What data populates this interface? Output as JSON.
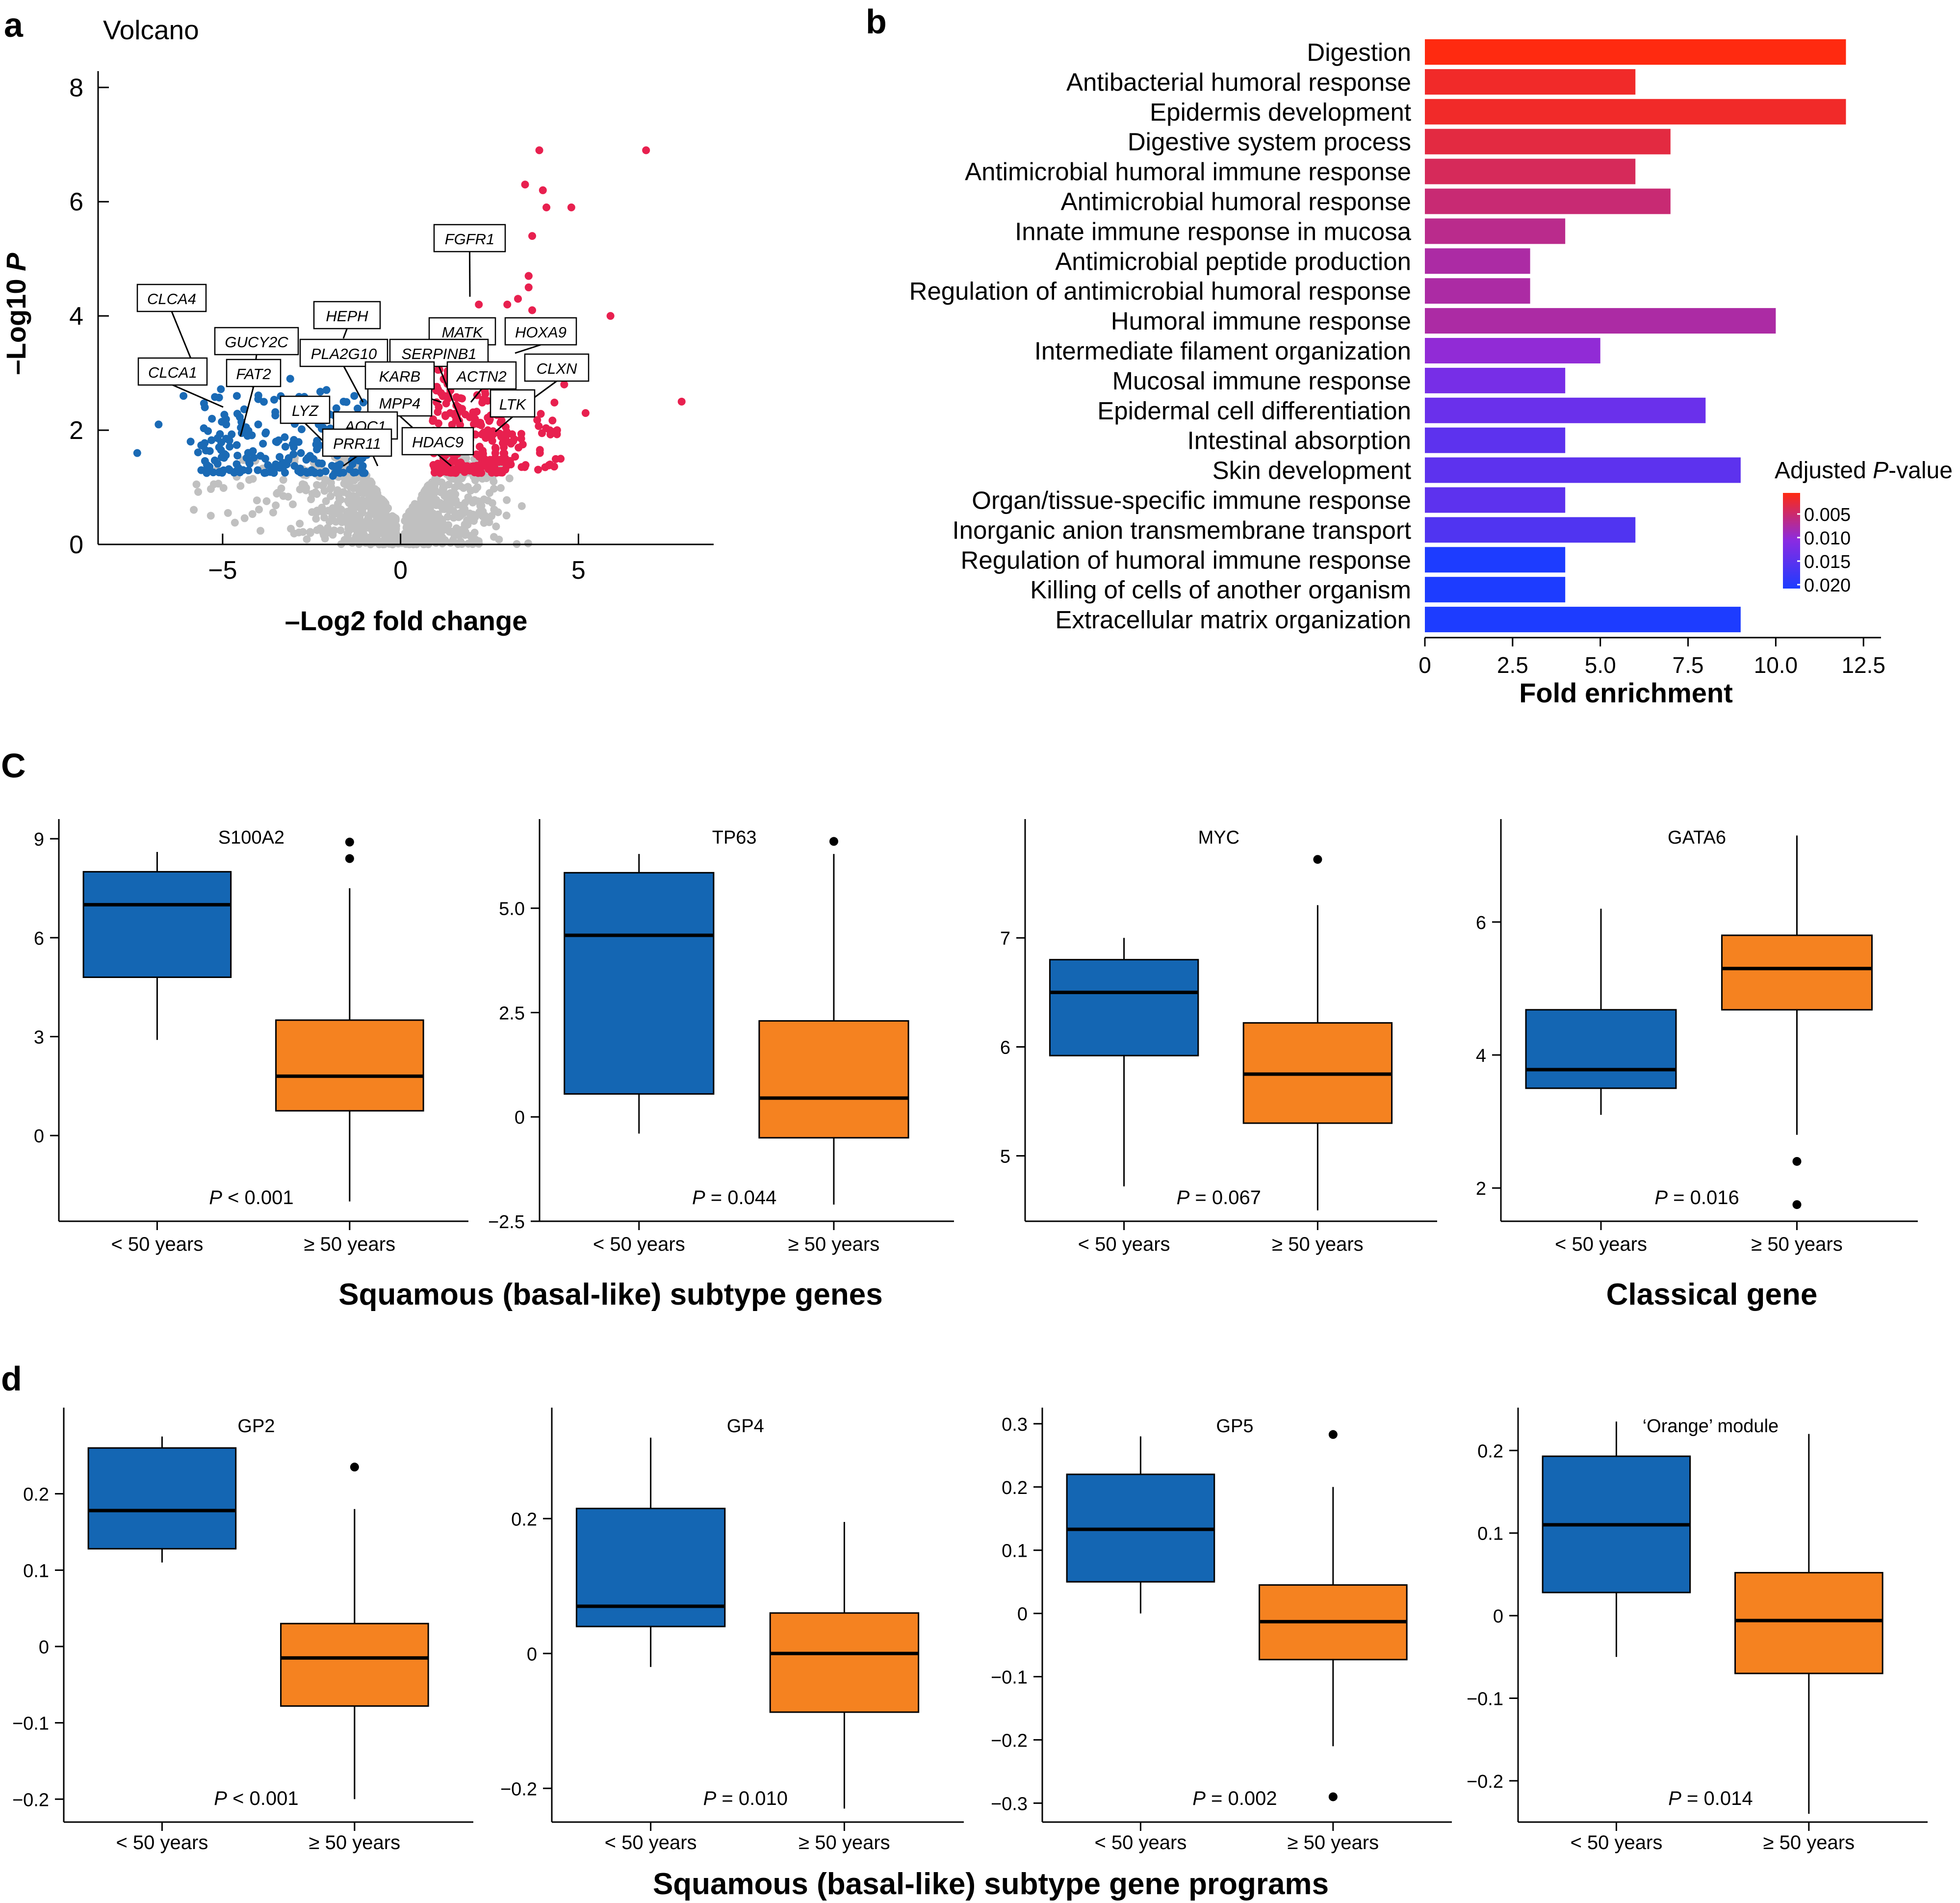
{
  "colors": {
    "down": "#1a6ab5",
    "up": "#e8204f",
    "ns": "#c0c0c0",
    "group1": "#1466b3",
    "group2": "#f58220",
    "grad_low": "#1d3cff",
    "grad_mid": "#8a2be2",
    "grad_high": "#ff2a10"
  },
  "chart_data": [
    {
      "panel": "a",
      "type": "scatter",
      "title": "Volcano",
      "xlabel": "–Log2 fold change",
      "ylabel_main": "–Log10 ",
      "ylabel_italic": "P",
      "xlim": [
        -8.5,
        8.8
      ],
      "ylim": [
        0,
        8.2
      ],
      "xticks": [
        -5,
        0,
        5
      ],
      "yticks": [
        0,
        2,
        4,
        6,
        8
      ],
      "highlight_points": {
        "up": [
          [
            6.9,
            6.9
          ],
          [
            3.9,
            6.9
          ],
          [
            3.5,
            6.3
          ],
          [
            4.0,
            6.2
          ],
          [
            4.1,
            5.9
          ],
          [
            4.8,
            5.9
          ],
          [
            3.7,
            5.4
          ],
          [
            3.6,
            4.7
          ],
          [
            3.6,
            4.7
          ],
          [
            3.6,
            4.5
          ],
          [
            3.5,
            3.7
          ],
          [
            5.9,
            4.0
          ],
          [
            7.9,
            2.5
          ],
          [
            2.2,
            4.2
          ],
          [
            3.0,
            4.2
          ],
          [
            3.3,
            4.3
          ],
          [
            3.7,
            4.1
          ],
          [
            2.6,
            3.1
          ],
          [
            4.6,
            2.8
          ],
          [
            5.2,
            2.3
          ],
          [
            4.4,
            2.0
          ],
          [
            4.5,
            1.5
          ],
          [
            3.0,
            1.8
          ],
          [
            3.1,
            1.4
          ],
          [
            4.2,
            1.4
          ]
        ],
        "down": [
          [
            -7.4,
            1.6
          ],
          [
            -6.8,
            2.1
          ],
          [
            -6.1,
            2.6
          ],
          [
            -5.9,
            1.8
          ],
          [
            -5.5,
            2.4
          ],
          [
            -5.3,
            2.2
          ],
          [
            -5.1,
            1.7
          ],
          [
            -4.9,
            2.1
          ],
          [
            -4.8,
            1.3
          ],
          [
            -4.6,
            2.6
          ],
          [
            -4.3,
            1.9
          ],
          [
            -4.0,
            2.1
          ],
          [
            -3.8,
            1.5
          ],
          [
            -3.5,
            1.8
          ],
          [
            -3.2,
            1.4
          ],
          [
            -3.0,
            2.2
          ],
          [
            -2.8,
            1.6
          ],
          [
            -2.5,
            1.3
          ],
          [
            -2.2,
            2.4
          ],
          [
            -1.9,
            1.2
          ],
          [
            -1.7,
            1.4
          ],
          [
            -1.3,
            2.6
          ],
          [
            -5.6,
            1.3
          ],
          [
            -4.4,
            3.0
          ],
          [
            -3.1,
            2.9
          ],
          [
            -1.6,
            2.5
          ]
        ]
      },
      "labels": [
        "CLCA4",
        "GUCY2C",
        "HEPH",
        "FGFR1",
        "MATK",
        "HOXA9",
        "CLCA1",
        "FAT2",
        "PLA2G10",
        "SERPINB1",
        "KARB",
        "ACTN2",
        "CLXN",
        "LYZ",
        "MPP4",
        "LTK",
        "AOC1",
        "PRR11",
        "HDAC9"
      ]
    },
    {
      "panel": "b",
      "type": "bar",
      "xlabel": "Fold enrichment",
      "xlim": [
        0,
        13
      ],
      "xticks": [
        "0",
        "2.5",
        "5.0",
        "7.5",
        "10.0",
        "12.5"
      ],
      "legend_title_main": "Adjusted ",
      "legend_title_italic": "P",
      "legend_title_end": "-value",
      "legend_ticks": [
        "0.005",
        "0.010",
        "0.015",
        "0.020"
      ],
      "categories": [
        "Digestion",
        "Antibacterial humoral response",
        "Epidermis development",
        "Digestive system process",
        "Antimicrobial humoral immune response",
        "Antimicrobial humoral response",
        "Innate immune response in mucosa",
        "Antimicrobial peptide production",
        "Regulation of antimicrobial humoral response",
        "Humoral immune response",
        "Intermediate filament organization",
        "Mucosal immune response",
        "Epidermal cell differentiation",
        "Intestinal absorption",
        "Skin development",
        "Organ/tissue-specific immune response",
        "Inorganic anion transmembrane transport",
        "Regulation of humoral immune response",
        "Killing of cells of another organism",
        "Extracellular matrix organization"
      ],
      "values": [
        12,
        6,
        12,
        7,
        6,
        7,
        4,
        3,
        3,
        10,
        5,
        4,
        8,
        4,
        9,
        4,
        6,
        4,
        4,
        9
      ],
      "adjusted_p": [
        0.003,
        0.004,
        0.004,
        0.005,
        0.006,
        0.007,
        0.008,
        0.009,
        0.009,
        0.009,
        0.011,
        0.013,
        0.014,
        0.015,
        0.015,
        0.015,
        0.016,
        0.02,
        0.02,
        0.02
      ]
    },
    {
      "panel": "C",
      "type": "box",
      "groups": [
        "< 50 years",
        "≥ 50 years"
      ],
      "group_label": "Squamous (basal-like) subtype genes",
      "group_label_2": "Classical gene",
      "plots": [
        {
          "title": "S100A2",
          "ylim": [
            -2.6,
            9.3
          ],
          "yticks": [
            "0",
            "3",
            "6",
            "9"
          ],
          "p_prefix": "P",
          "p_text": " < 0.001",
          "g1": {
            "min": 2.9,
            "q1": 4.8,
            "med": 7.0,
            "q3": 8.0,
            "max": 8.6,
            "out": []
          },
          "g2": {
            "min": -2.0,
            "q1": 0.75,
            "med": 1.8,
            "q3": 3.5,
            "max": 7.5,
            "out": [
              8.4,
              8.9
            ]
          }
        },
        {
          "title": "TP63",
          "ylim": [
            -2.5,
            6.9
          ],
          "yticks": [
            "−2.5",
            "0",
            "2.5",
            "5.0"
          ],
          "p_prefix": "P",
          "p_text": " = 0.044",
          "g1": {
            "min": -0.4,
            "q1": 0.55,
            "med": 4.35,
            "q3": 5.85,
            "max": 6.3,
            "out": []
          },
          "g2": {
            "min": -2.1,
            "q1": -0.5,
            "med": 0.45,
            "q3": 2.3,
            "max": 6.3,
            "out": [
              6.6
            ]
          }
        },
        {
          "title": "MYC",
          "ylim": [
            4.4,
            8.0
          ],
          "yticks": [
            "5",
            "6",
            "7"
          ],
          "p_prefix": "P",
          "p_text": " = 0.067",
          "g1": {
            "min": 4.72,
            "q1": 5.92,
            "med": 6.5,
            "q3": 6.8,
            "max": 7.0,
            "out": []
          },
          "g2": {
            "min": 4.5,
            "q1": 5.3,
            "med": 5.75,
            "q3": 6.22,
            "max": 7.3,
            "out": [
              7.72
            ]
          }
        },
        {
          "title": "GATA6",
          "ylim": [
            1.5,
            7.4
          ],
          "yticks": [
            "2",
            "4",
            "6"
          ],
          "p_prefix": "P",
          "p_text": " = 0.016",
          "g1": {
            "min": 3.1,
            "q1": 3.5,
            "med": 3.78,
            "q3": 4.68,
            "max": 6.2,
            "out": []
          },
          "g2": {
            "min": 2.8,
            "q1": 4.68,
            "med": 5.3,
            "q3": 5.8,
            "max": 7.3,
            "out": [
              2.4,
              1.75
            ]
          }
        }
      ]
    },
    {
      "panel": "d",
      "type": "box",
      "groups": [
        "< 50 years",
        "≥ 50 years"
      ],
      "group_label": "Squamous (basal-like) subtype gene programs",
      "plots": [
        {
          "title": "GP2",
          "ylim": [
            -0.23,
            0.3
          ],
          "yticks": [
            "−0.2",
            "−0.1",
            "0",
            "0.1",
            "0.2"
          ],
          "p_prefix": "P",
          "p_text": " < 0.001",
          "g1": {
            "min": 0.11,
            "q1": 0.128,
            "med": 0.178,
            "q3": 0.26,
            "max": 0.275,
            "out": []
          },
          "g2": {
            "min": -0.2,
            "q1": -0.078,
            "med": -0.015,
            "q3": 0.03,
            "max": 0.18,
            "out": [
              0.235
            ]
          }
        },
        {
          "title": "GP4",
          "ylim": [
            -0.25,
            0.35
          ],
          "yticks": [
            "−0.2",
            "0",
            "0.2"
          ],
          "p_prefix": "P",
          "p_text": " = 0.010",
          "g1": {
            "min": -0.02,
            "q1": 0.04,
            "med": 0.07,
            "q3": 0.215,
            "max": 0.32,
            "out": []
          },
          "g2": {
            "min": -0.23,
            "q1": -0.087,
            "med": 0.0,
            "q3": 0.06,
            "max": 0.195,
            "out": []
          }
        },
        {
          "title": "GP5",
          "ylim": [
            -0.33,
            0.31
          ],
          "yticks": [
            "−0.3",
            "−0.2",
            "−0.1",
            "0",
            "0.1",
            "0.2",
            "0.3"
          ],
          "p_prefix": "P",
          "p_text": " = 0.002",
          "g1": {
            "min": 0.0,
            "q1": 0.05,
            "med": 0.133,
            "q3": 0.22,
            "max": 0.28,
            "out": []
          },
          "g2": {
            "min": -0.21,
            "q1": -0.073,
            "med": -0.013,
            "q3": 0.045,
            "max": 0.2,
            "out": [
              0.283,
              -0.29
            ]
          }
        },
        {
          "title": "‘Orange’ module",
          "ylim": [
            -0.25,
            0.24
          ],
          "yticks": [
            "−0.2",
            "−0.1",
            "0",
            "0.1",
            "0.2"
          ],
          "p_prefix": "P",
          "p_text": " = 0.014",
          "g1": {
            "min": -0.05,
            "q1": 0.028,
            "med": 0.11,
            "q3": 0.193,
            "max": 0.235,
            "out": []
          },
          "g2": {
            "min": -0.24,
            "q1": -0.07,
            "med": -0.006,
            "q3": 0.052,
            "max": 0.22,
            "out": []
          }
        }
      ]
    }
  ],
  "panel_letters": [
    "a",
    "b",
    "C",
    "d"
  ]
}
